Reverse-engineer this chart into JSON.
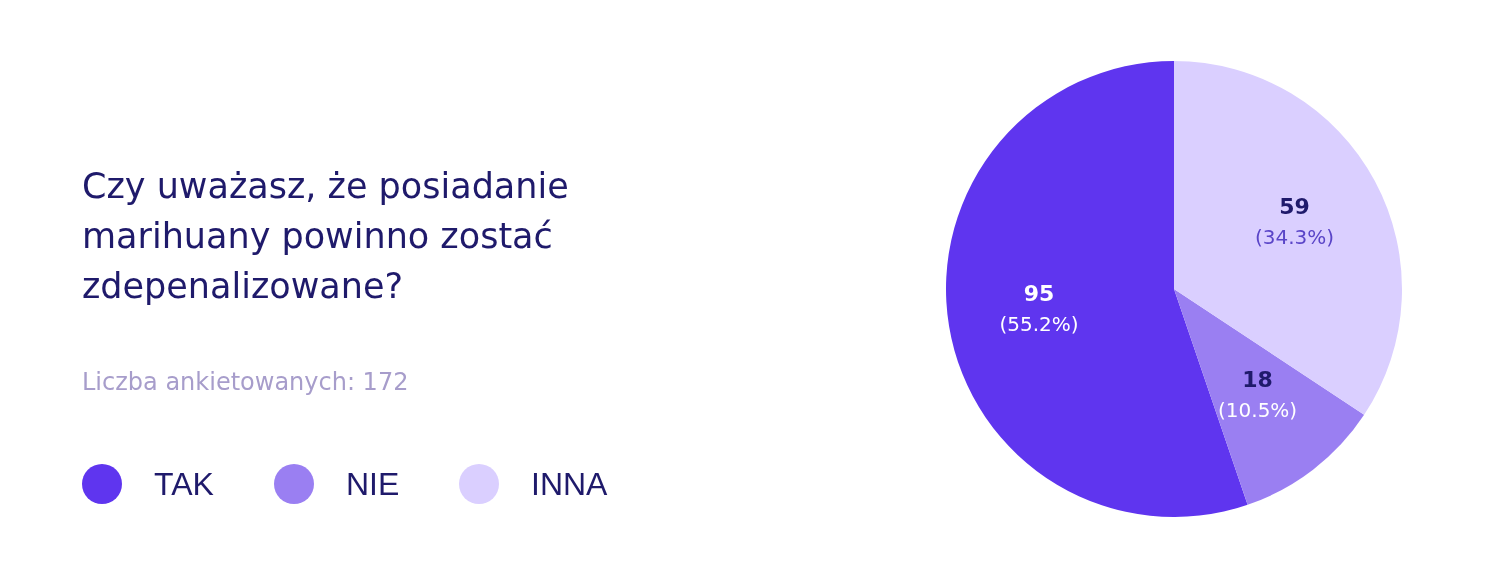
{
  "chart_data": {
    "type": "pie",
    "title": "Czy uważasz, że posiadanie marihuany powinno zostać zdepenalizowane?",
    "subtitle": "Liczba ankietowanych: 172",
    "categories": [
      "TAK",
      "NIE",
      "INNA"
    ],
    "values": [
      95,
      18,
      59
    ],
    "colors": [
      "#5f35ef",
      "#9a7ff2",
      "#dacfff"
    ],
    "value_labels": [
      "95 (55.2%)",
      "18 (10.5%)",
      "59 (34.3%)"
    ],
    "legend": "left"
  }
}
